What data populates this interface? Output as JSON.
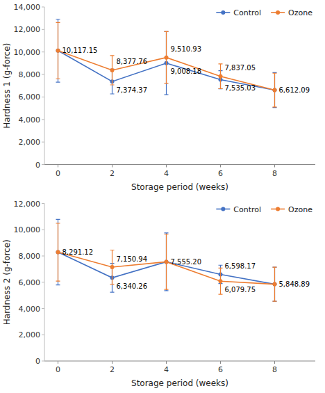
{
  "chart_data": [
    {
      "type": "line",
      "x": [
        0,
        2,
        4,
        6,
        8
      ],
      "xlim": [
        -0.5,
        9.5
      ],
      "xticks": [
        0,
        2,
        4,
        6,
        8
      ],
      "ylim": [
        0,
        14000
      ],
      "yticks": [
        0,
        {
          "value": 2000,
          "label": "2,000"
        },
        {
          "value": 4000,
          "label": "4,000"
        },
        {
          "value": 6000,
          "label": "6,000"
        },
        {
          "value": 8000,
          "label": "8,000"
        },
        {
          "value": 10000,
          "label": "10,000"
        },
        {
          "value": 12000,
          "label": "12,000"
        },
        {
          "value": 14000,
          "label": "14,000"
        }
      ],
      "xlabel": "Storage period (weeks)",
      "ylabel": "Hardness 1 (g-force)",
      "grid": false,
      "legend": "top-right",
      "data_labels": true,
      "marker": "circle",
      "series": [
        {
          "name": "Control",
          "color": "#4472C4",
          "values": [
            10117.15,
            7374.37,
            9008.18,
            7535.03,
            6612.09
          ],
          "errors": [
            2800,
            1100,
            2800,
            800,
            1550
          ],
          "value_labels": [
            "10,117.15",
            "7,374.37",
            "9,008.18",
            "7,535.03",
            "6,612.09"
          ]
        },
        {
          "name": "Ozone",
          "color": "#ED7D31",
          "values": [
            10117.15,
            8377.76,
            9510.93,
            7837.05,
            6612.09
          ],
          "errors": [
            2500,
            1300,
            2300,
            1100,
            1500
          ],
          "value_labels": [
            null,
            "8,377.76",
            "9,510.93",
            "7,837.05",
            null
          ]
        }
      ]
    },
    {
      "type": "line",
      "x": [
        0,
        2,
        4,
        6,
        8
      ],
      "xlim": [
        -0.5,
        9.5
      ],
      "xticks": [
        0,
        2,
        4,
        6,
        8
      ],
      "ylim": [
        0,
        12000
      ],
      "yticks": [
        0,
        {
          "value": 2000,
          "label": "2,000"
        },
        {
          "value": 4000,
          "label": "4,000"
        },
        {
          "value": 6000,
          "label": "6,000"
        },
        {
          "value": 8000,
          "label": "8,000"
        },
        {
          "value": 10000,
          "label": "10,000"
        },
        {
          "value": 12000,
          "label": "12,000"
        }
      ],
      "xlabel": "Storage period (weeks)",
      "ylabel": "Hardness 2 (g-force)",
      "grid": false,
      "legend": "top-right",
      "data_labels": true,
      "marker": "circle",
      "series": [
        {
          "name": "Control",
          "color": "#4472C4",
          "values": [
            8291.12,
            6340.26,
            7555.2,
            6598.17,
            5848.89
          ],
          "errors": [
            2500,
            1100,
            2200,
            700,
            1300
          ],
          "value_labels": [
            "8,291.12",
            "6,340.26",
            "7,555.20",
            "6,598.17",
            "5,848.89"
          ]
        },
        {
          "name": "Ozone",
          "color": "#ED7D31",
          "values": [
            8291.12,
            7150.94,
            7555.2,
            6079.75,
            5848.89
          ],
          "errors": [
            2200,
            1300,
            2100,
            1000,
            1300
          ],
          "value_labels": [
            null,
            "7,150.94",
            null,
            "6,079.75",
            null
          ]
        }
      ]
    }
  ]
}
